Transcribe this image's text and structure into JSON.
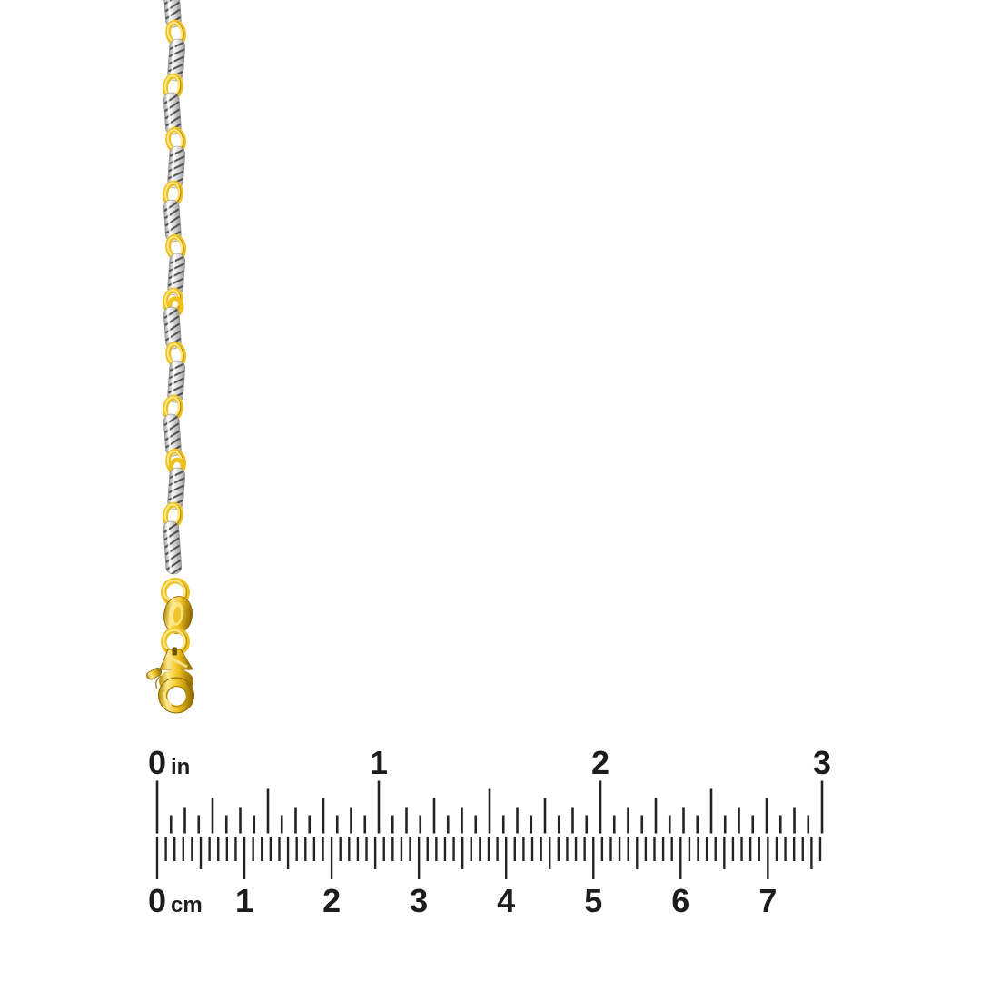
{
  "background_color": "#ffffff",
  "product": {
    "name": "two-tone chain with lobster clasp",
    "description_icons": [
      "chain-link-icon",
      "lobster-clasp-icon"
    ],
    "colors": {
      "yellow_gold": "#EFC11F",
      "yellow_gold_light": "#FFE98F",
      "yellow_gold_dark": "#B68C00",
      "yellow_gold_deep": "#8A6500",
      "white_gold_light": "#F4F4F4",
      "white_gold_mid": "#D2D2D2",
      "white_gold_shadow": "#9E9E9E",
      "facet_dark": "#3F3F3F"
    }
  },
  "ruler": {
    "tick_color": "#232323",
    "label_color": "#1C1C1C",
    "inch_scale": {
      "unit": "in",
      "labels": [
        "0",
        "1",
        "2",
        "3"
      ],
      "subdivisions_per_inch": 16,
      "max_value": 3
    },
    "cm_scale": {
      "unit": "cm",
      "labels": [
        "0",
        "1",
        "2",
        "3",
        "4",
        "5",
        "6",
        "7"
      ],
      "millimeter_ticks_total": 76,
      "max_value_cm": 7.6
    }
  }
}
